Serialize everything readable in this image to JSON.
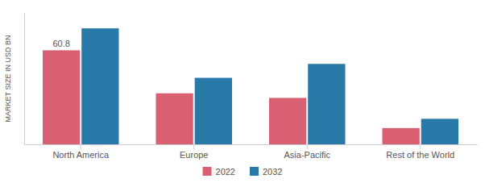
{
  "chart_data": {
    "type": "bar",
    "ylabel": "MARKET SIZE IN USD BN",
    "categories": [
      "North America",
      "Europe",
      "Asia-Pacific",
      "Rest of the World"
    ],
    "series": [
      {
        "name": "2022",
        "color": "#d95f72",
        "values": [
          60.8,
          33.0,
          30.0,
          10.5
        ]
      },
      {
        "name": "2032",
        "color": "#2878a8",
        "values": [
          75.0,
          43.0,
          52.0,
          16.5
        ]
      }
    ],
    "annotations": [
      {
        "text": "60.8",
        "category": "North America",
        "series": "2022"
      }
    ],
    "ylim": [
      0,
      85
    ],
    "grid": false,
    "legend": "bottom",
    "tick_labels": "x"
  }
}
